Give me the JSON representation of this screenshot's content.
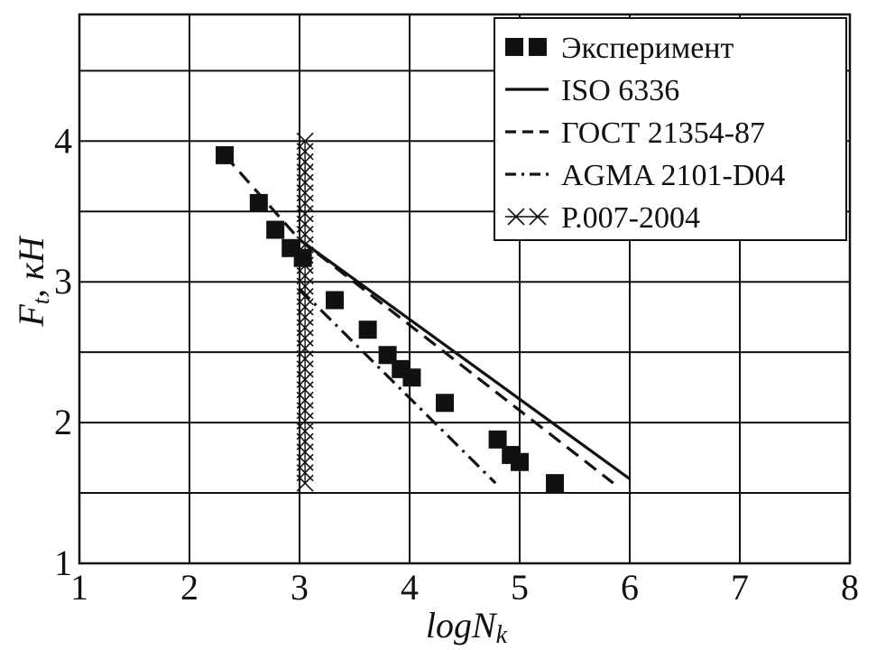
{
  "chart_data": {
    "type": "line",
    "xlabel": "logN",
    "xlabel_sub": "k",
    "ylabel": "F",
    "ylabel_sub": "t",
    "ylabel_unit": ", кН",
    "xlim": [
      1,
      8
    ],
    "ylim": [
      1,
      4.9
    ],
    "x_ticks": [
      1,
      2,
      3,
      4,
      5,
      6,
      7,
      8
    ],
    "y_ticks": [
      1,
      2,
      3,
      4
    ],
    "x_gridlines": [
      1,
      2,
      3,
      4,
      5,
      6,
      7,
      8
    ],
    "y_gridlines": [
      1,
      1.5,
      2,
      2.5,
      3,
      3.5,
      4,
      4.5,
      4.9
    ],
    "grid": true,
    "legend_position": "top-right",
    "series": [
      {
        "name": "Эксперимент",
        "style": "square-markers",
        "points": [
          [
            2.32,
            3.9
          ],
          [
            2.63,
            3.56
          ],
          [
            2.78,
            3.37
          ],
          [
            2.92,
            3.24
          ],
          [
            3.03,
            3.17
          ],
          [
            3.32,
            2.87
          ],
          [
            3.62,
            2.66
          ],
          [
            3.8,
            2.48
          ],
          [
            3.92,
            2.38
          ],
          [
            4.02,
            2.32
          ],
          [
            4.32,
            2.14
          ],
          [
            4.8,
            1.88
          ],
          [
            4.92,
            1.77
          ],
          [
            5.0,
            1.72
          ],
          [
            5.32,
            1.57
          ]
        ]
      },
      {
        "name": "ISO 6336",
        "style": "solid",
        "points": [
          [
            3.0,
            3.3
          ],
          [
            6.0,
            1.6
          ]
        ]
      },
      {
        "name": "ГОСТ 21354-87",
        "style": "dashed",
        "points": [
          [
            2.32,
            3.9
          ],
          [
            3.0,
            3.3
          ],
          [
            5.85,
            1.57
          ]
        ]
      },
      {
        "name": "AGMA 2101-D04",
        "style": "dash-dot",
        "points": [
          [
            3.0,
            2.95
          ],
          [
            4.78,
            1.57
          ]
        ]
      },
      {
        "name": "P.007-2004",
        "style": "x-markers-vertical",
        "x": 3.05,
        "y_range": [
          1.57,
          4.0
        ],
        "marker_count": 34
      }
    ]
  }
}
